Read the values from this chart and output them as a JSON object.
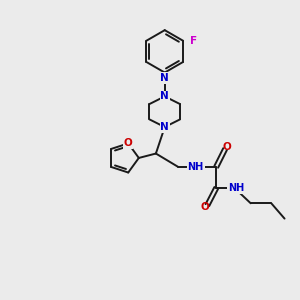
{
  "bg_color": "#ebebeb",
  "bond_color": "#1a1a1a",
  "N_color": "#0000cc",
  "O_color": "#cc0000",
  "F_color": "#cc00cc",
  "lw": 1.4,
  "figsize": [
    3.0,
    3.0
  ],
  "dpi": 100,
  "xlim": [
    0,
    10
  ],
  "ylim": [
    0,
    10
  ]
}
